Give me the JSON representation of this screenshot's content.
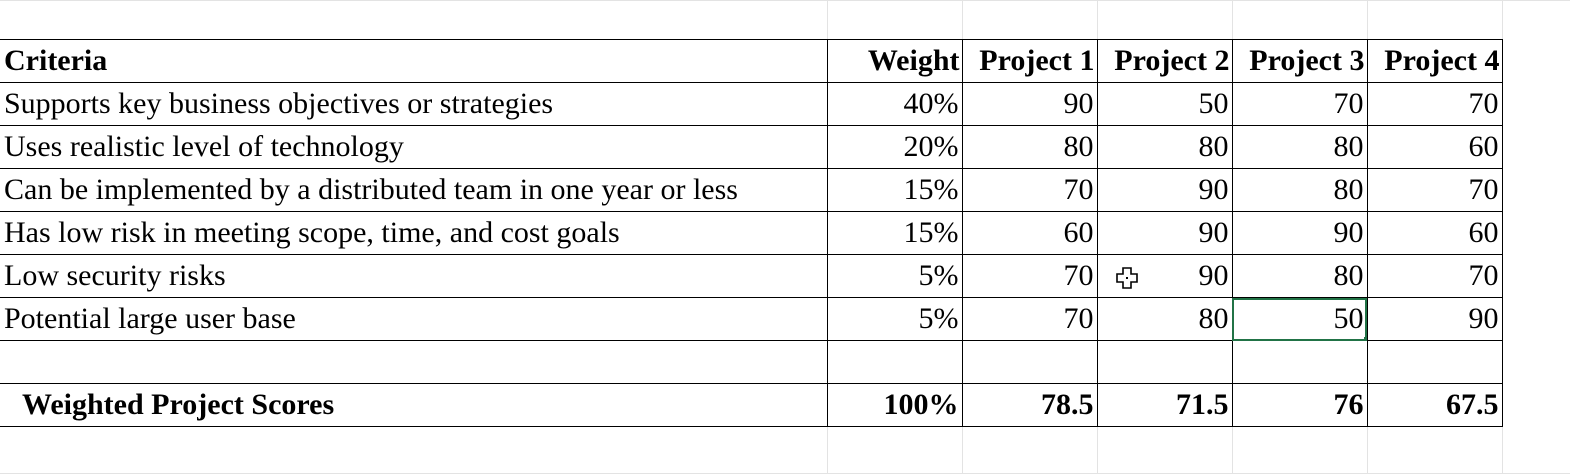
{
  "table": {
    "header": [
      "Criteria",
      "Weight",
      "Project 1",
      "Project 2",
      "Project 3",
      "Project 4"
    ],
    "rows": [
      [
        "Supports key business objectives or strategies",
        "40%",
        "90",
        "50",
        "70",
        "70"
      ],
      [
        "Uses realistic level of technology",
        "20%",
        "80",
        "80",
        "80",
        "60"
      ],
      [
        "Can be implemented by a distributed team in one year or less",
        "15%",
        "70",
        "90",
        "80",
        "70"
      ],
      [
        "Has low risk in meeting scope, time, and cost goals",
        "15%",
        "60",
        "90",
        "90",
        "60"
      ],
      [
        "Low security risks",
        "5%",
        "70",
        "90",
        "80",
        "70"
      ],
      [
        "Potential large user base",
        "5%",
        "70",
        "80",
        "50",
        "90"
      ]
    ],
    "totals": [
      "Weighted Project Scores",
      "100%",
      "78.5",
      "71.5",
      "76",
      "67.5"
    ]
  },
  "selection": {
    "active_cell": "Project 3 / Potential large user base",
    "color": "#217346"
  },
  "cursor": {
    "icon": "cell-select-cross-icon"
  }
}
